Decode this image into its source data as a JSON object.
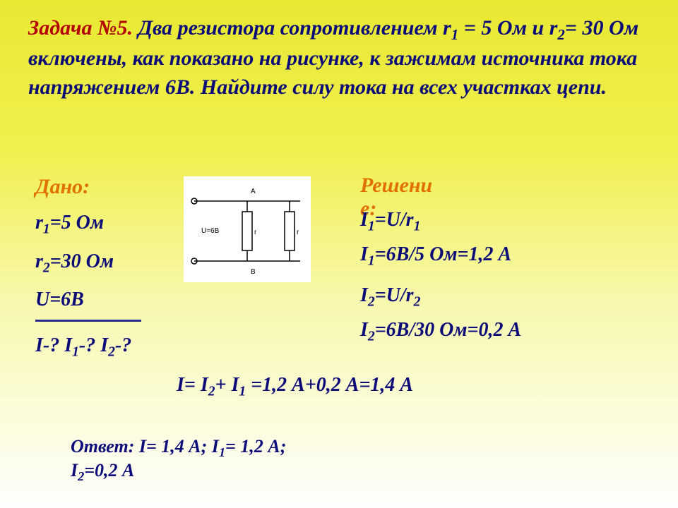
{
  "problem": {
    "lead": "Задача №5.",
    "body": "Два резистора сопротивлением r₁ = 5 Ом и r₂= 30 Ом включены, как показано на рисунке, к зажимам источника тока напряжением 6В. Найдите силу тока на всех участках цепи."
  },
  "given": {
    "label": "Дано:",
    "lines": [
      "r₁=5 Ом",
      "r₂=30 Ом",
      "U=6В"
    ],
    "find": "I-? I₁-? I₂-?"
  },
  "circuit": {
    "u_label": "U=6B",
    "r1_label": "r₁",
    "r2_label": "r₂",
    "node_a": "A",
    "node_b": "B",
    "bg": "#ffffff",
    "stroke": "#000000",
    "font": "Arial",
    "label_fontsize": 9
  },
  "solution": {
    "label_line1": "Решени",
    "label_line2": "е:",
    "lines": [
      "I₁=U/r₁",
      "I₁=6В/5 Ом=1,2 А",
      "I₂=U/r₂",
      "I₂=6В/30 Ом=0,2 А"
    ],
    "sum": "I= I₂+ I₁ =1,2 А+0,2 А=1,4 А"
  },
  "answer": {
    "line1": "Ответ: I= 1,4 А; I₁= 1,2 А;",
    "line2": "I₂=0,2 А"
  },
  "colors": {
    "lead": "#b30000",
    "text": "#0b0b7a",
    "label": "#e07000"
  }
}
